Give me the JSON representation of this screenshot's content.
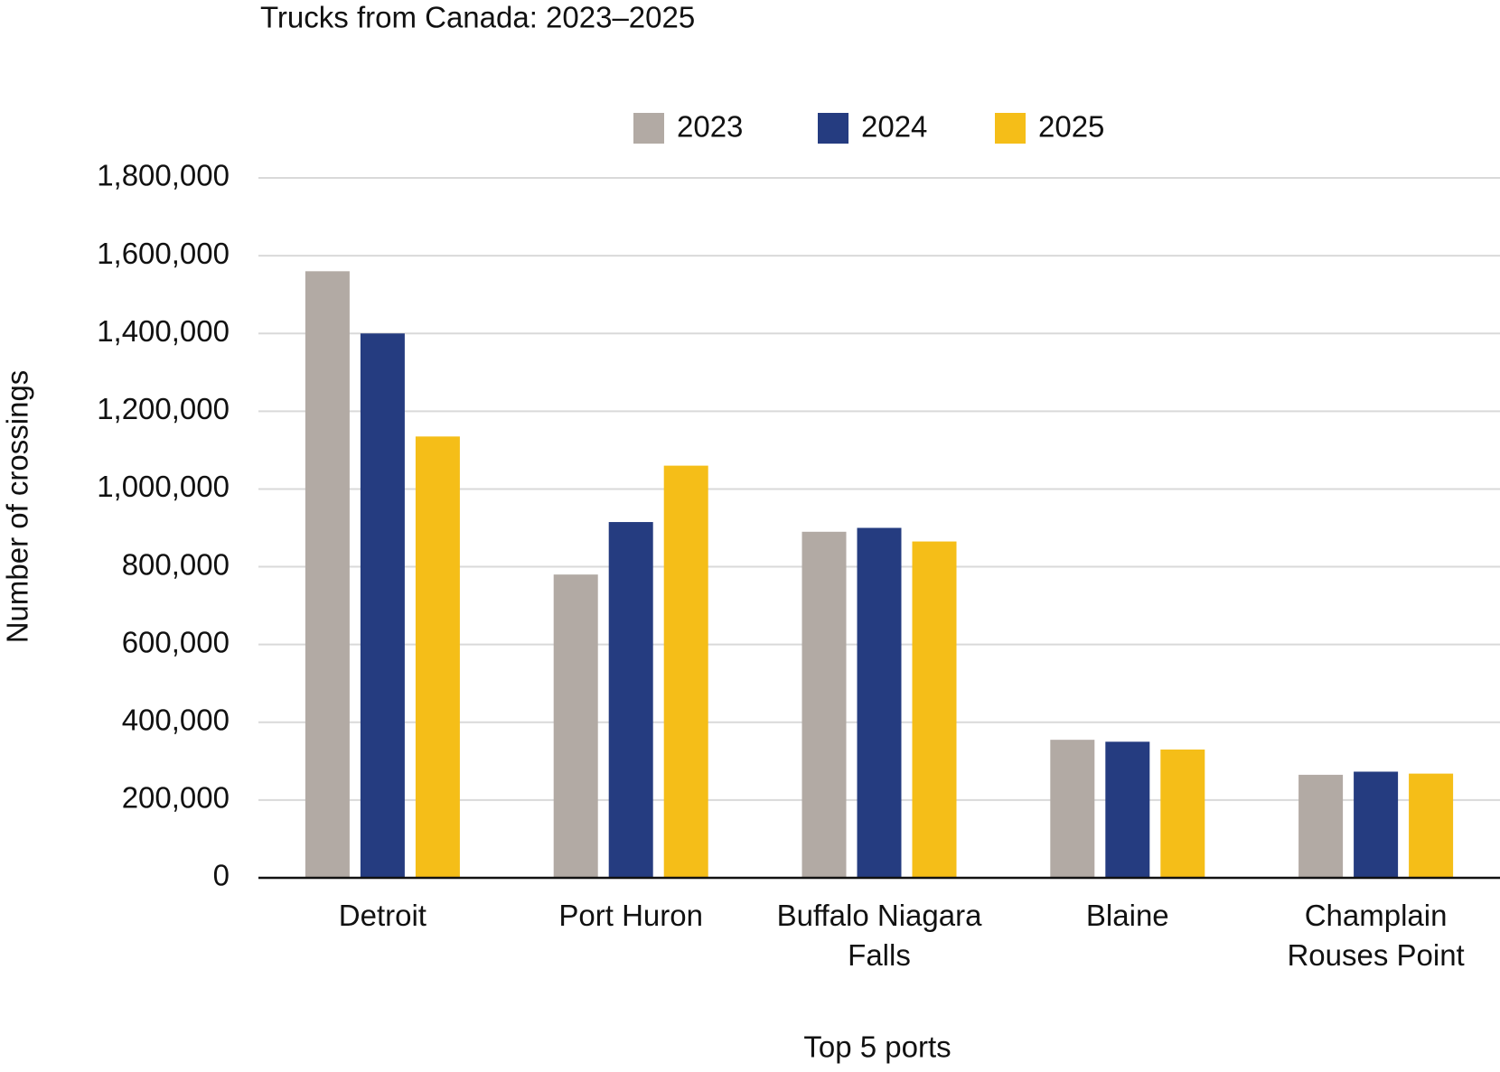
{
  "chart_data": {
    "type": "bar",
    "title": "Trucks from Canada: 2023–2025",
    "x_label": "Top 5 ports",
    "y_label": "Number of crossings",
    "categories": [
      "Detroit",
      "Port Huron",
      "Buffalo Niagara Falls",
      "Blaine",
      "Champlain Rouses Point"
    ],
    "series": [
      {
        "name": "2023",
        "color": "#b2aaa4",
        "values": [
          1560000,
          780000,
          890000,
          355000,
          265000
        ]
      },
      {
        "name": "2024",
        "color": "#253c80",
        "values": [
          1400000,
          915000,
          900000,
          350000,
          273000
        ]
      },
      {
        "name": "2025",
        "color": "#f5be18",
        "values": [
          1135000,
          1060000,
          865000,
          330000,
          268000
        ]
      }
    ],
    "ylim": [
      0,
      1800000
    ],
    "yticks": [
      0,
      {
        "value": 200000,
        "label": "200,000"
      },
      {
        "value": 400000,
        "label": "400,000"
      },
      {
        "value": 600000,
        "label": "600,000"
      },
      {
        "value": 800000,
        "label": "800,000"
      },
      {
        "value": 1000000,
        "label": "1,000,000"
      },
      {
        "value": 1200000,
        "label": "1,200,000"
      },
      {
        "value": 1400000,
        "label": "1,400,000"
      },
      {
        "value": 1600000,
        "label": "1,600,000"
      },
      {
        "value": 1800000,
        "label": "1,800,000"
      }
    ],
    "grid": true,
    "legend": "top"
  }
}
